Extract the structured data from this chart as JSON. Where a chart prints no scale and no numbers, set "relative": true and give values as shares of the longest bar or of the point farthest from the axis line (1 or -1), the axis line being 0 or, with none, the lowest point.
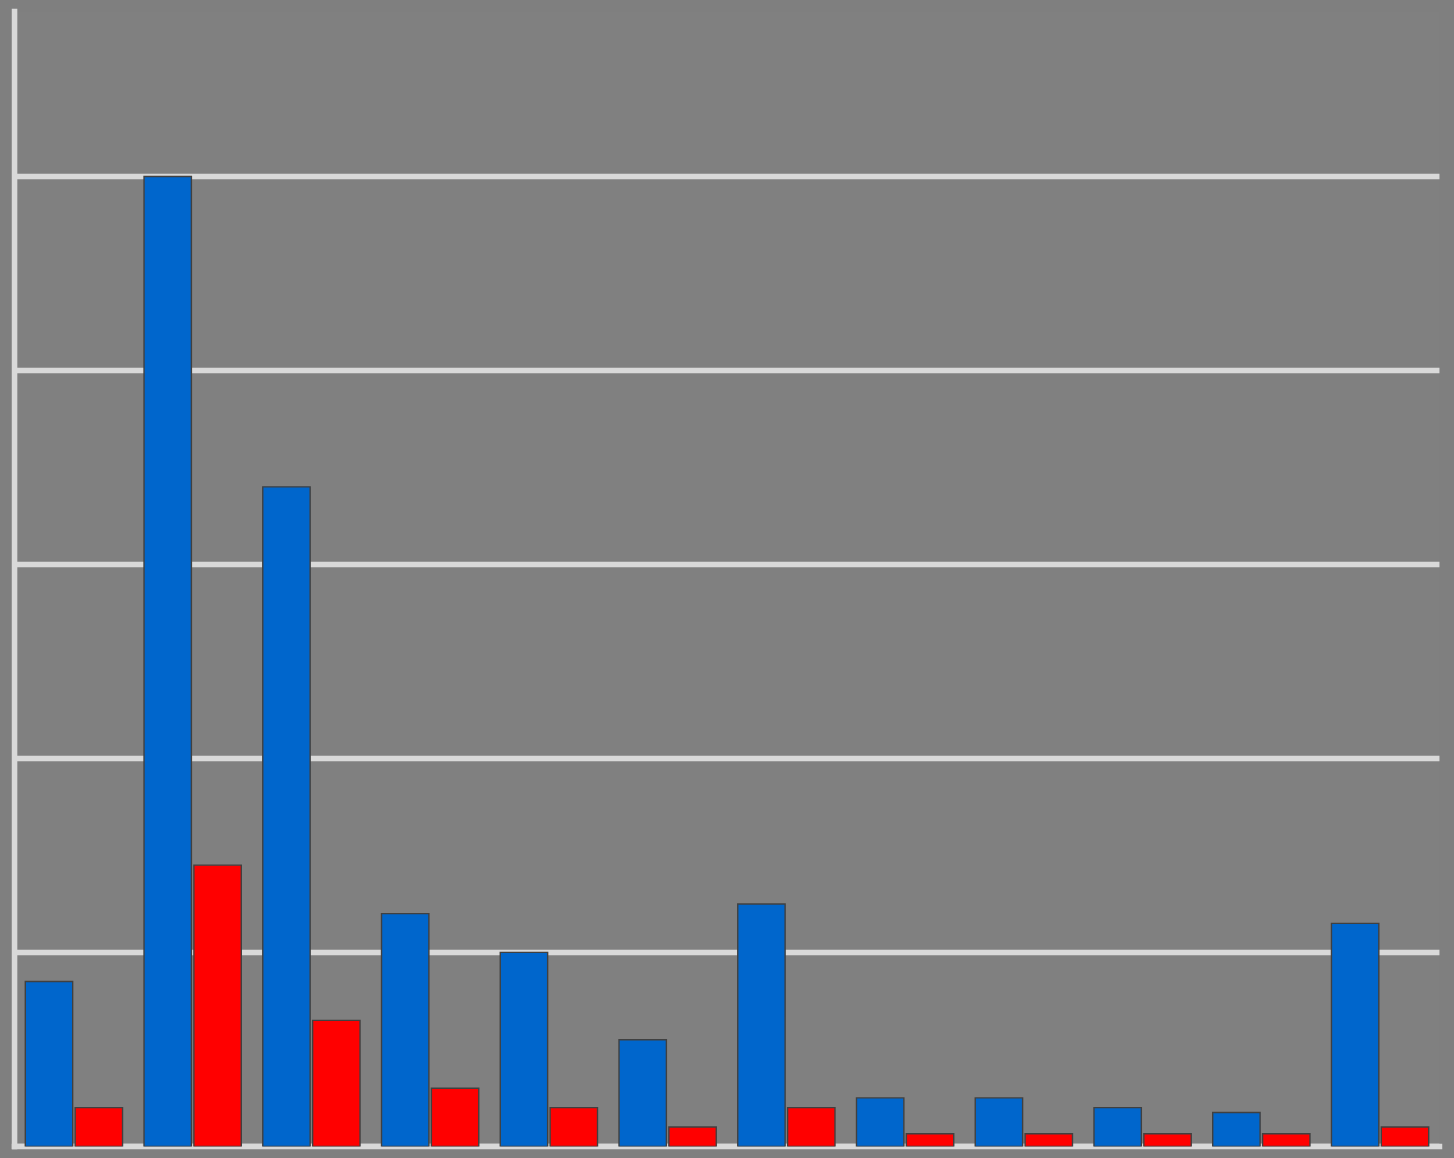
{
  "chart_data": {
    "type": "bar",
    "relative": true,
    "grid": "y",
    "categories": [
      null,
      null,
      null,
      null,
      null,
      null,
      null,
      null,
      null,
      null,
      null,
      null
    ],
    "series": [
      {
        "color": "#0066cc",
        "values": [
          0.17,
          1.0,
          0.68,
          0.24,
          0.2,
          0.11,
          0.25,
          0.05,
          0.05,
          0.04,
          0.035,
          0.23
        ]
      },
      {
        "color": "#ff0000",
        "values": [
          0.04,
          0.29,
          0.13,
          0.06,
          0.04,
          0.02,
          0.04,
          0.013,
          0.013,
          0.013,
          0.013,
          0.02
        ]
      }
    ]
  }
}
